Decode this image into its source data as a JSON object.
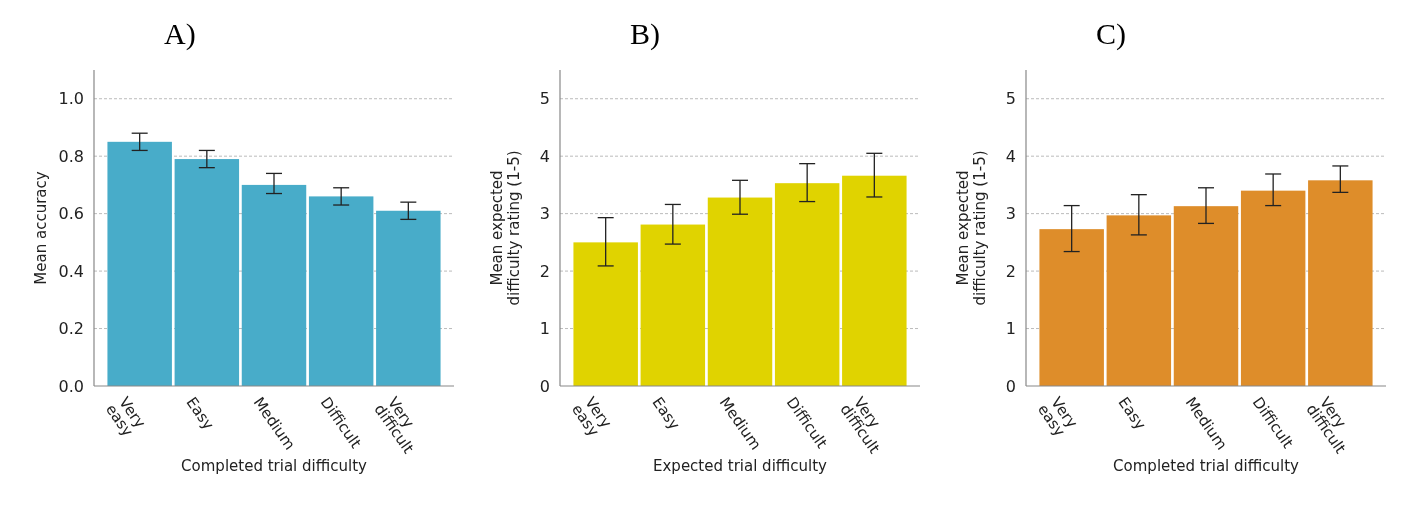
{
  "chart_data": [
    {
      "type": "bar",
      "title": "A)",
      "xlabel": "Completed trial difficulty",
      "ylabel": "Mean accuracy",
      "categories": [
        "Very easy",
        "Easy",
        "Medium",
        "Difficult",
        "Very difficult"
      ],
      "color": "#48acc9",
      "values": [
        0.85,
        0.79,
        0.7,
        0.66,
        0.61
      ],
      "errors": [
        [
          0.82,
          0.88
        ],
        [
          0.76,
          0.82
        ],
        [
          0.67,
          0.74
        ],
        [
          0.63,
          0.69
        ],
        [
          0.58,
          0.64
        ]
      ],
      "ylim": [
        0,
        1.1
      ],
      "yticks": [
        {
          "value": 0,
          "label": "0.0"
        },
        {
          "value": 0.2,
          "label": "0.2"
        },
        {
          "value": 0.4,
          "label": "0.4"
        },
        {
          "value": 0.6,
          "label": "0.6"
        },
        {
          "value": 0.8,
          "label": "0.8"
        },
        {
          "value": 1,
          "label": "1.0"
        }
      ],
      "grid": "y"
    },
    {
      "type": "bar",
      "title": "B)",
      "xlabel": "Expected trial difficulty",
      "ylabel": "Mean expected difficulty rating (1-5)",
      "categories": [
        "Very easy",
        "Easy",
        "Medium",
        "Difficult",
        "Very difficult"
      ],
      "color": "#e0d300",
      "values": [
        2.5,
        2.81,
        3.28,
        3.53,
        3.66
      ],
      "errors": [
        [
          2.09,
          2.93
        ],
        [
          2.47,
          3.16
        ],
        [
          2.99,
          3.58
        ],
        [
          3.21,
          3.87
        ],
        [
          3.29,
          4.05
        ]
      ],
      "ylim": [
        0,
        5.5
      ],
      "yticks": [
        0,
        1,
        2,
        3,
        4,
        5
      ],
      "grid": "y"
    },
    {
      "type": "bar",
      "title": "C)",
      "xlabel": "Completed trial difficulty",
      "ylabel": "Mean expected difficulty rating (1-5)",
      "categories": [
        "Very easy",
        "Easy",
        "Medium",
        "Difficult",
        "Very difficult"
      ],
      "color": "#de8d2a",
      "values": [
        2.73,
        2.97,
        3.13,
        3.4,
        3.58
      ],
      "errors": [
        [
          2.34,
          3.14
        ],
        [
          2.63,
          3.33
        ],
        [
          2.83,
          3.45
        ],
        [
          3.14,
          3.69
        ],
        [
          3.37,
          3.83
        ]
      ],
      "ylim": [
        0,
        5.5
      ],
      "yticks": [
        0,
        1,
        2,
        3,
        4,
        5
      ],
      "grid": "y"
    }
  ]
}
